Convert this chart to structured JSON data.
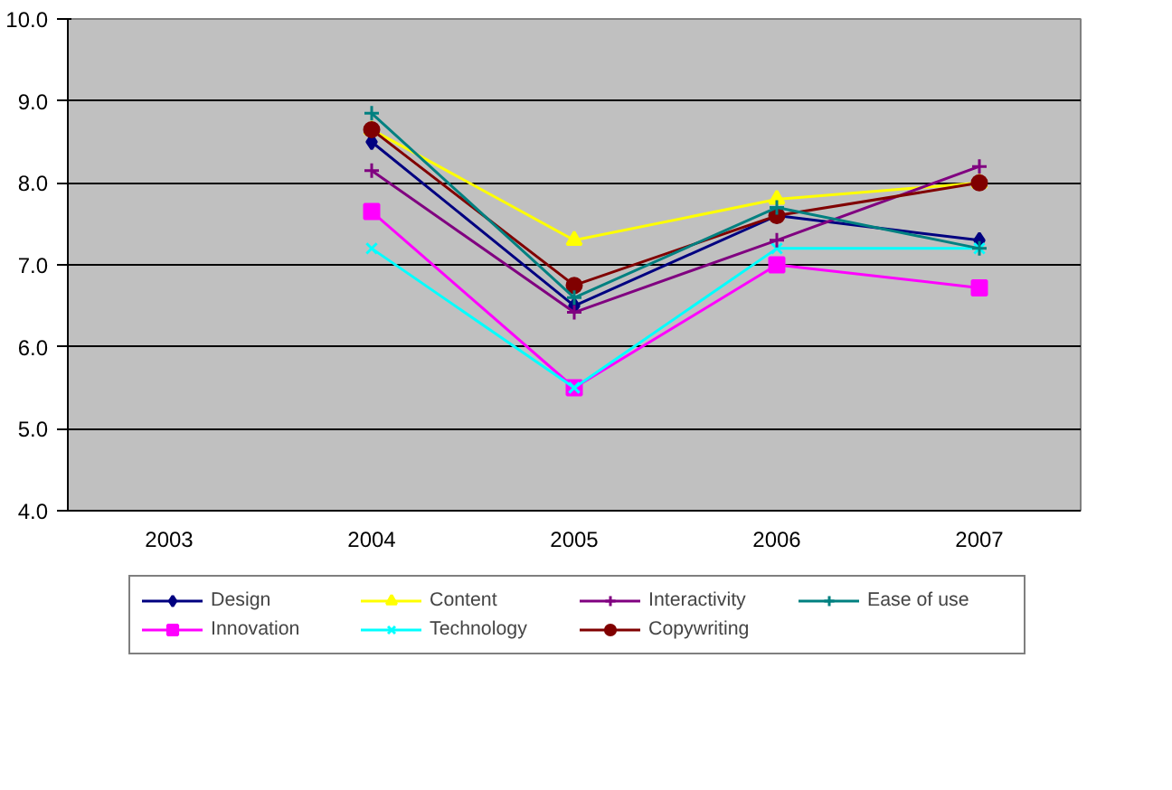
{
  "chart_data": {
    "type": "line",
    "categories": [
      "2003",
      "2004",
      "2005",
      "2006",
      "2007"
    ],
    "ylim": [
      4.0,
      10.0
    ],
    "yticks": [
      {
        "value": 4,
        "label": "4.0"
      },
      {
        "value": 5,
        "label": "5.0"
      },
      {
        "value": 6,
        "label": "6.0"
      },
      {
        "value": 7,
        "label": "7.0"
      },
      {
        "value": 8,
        "label": "8.0"
      },
      {
        "value": 9,
        "label": "9.0"
      },
      {
        "value": 10,
        "label": "10.0"
      }
    ],
    "grid": "y",
    "legend": "bottom",
    "line_style": "solid",
    "series": [
      {
        "name": "Design",
        "color": "#000080",
        "marker": "diamond",
        "values": [
          null,
          8.5,
          6.5,
          7.6,
          7.3
        ]
      },
      {
        "name": "Innovation",
        "color": "#ff00ff",
        "marker": "square",
        "values": [
          null,
          7.65,
          5.5,
          7.0,
          6.72
        ]
      },
      {
        "name": "Content",
        "color": "#ffff00",
        "marker": "triangle",
        "values": [
          null,
          8.65,
          7.3,
          7.8,
          8.0
        ]
      },
      {
        "name": "Technology",
        "color": "#00ffff",
        "marker": "x",
        "values": [
          null,
          7.2,
          5.5,
          7.2,
          7.2
        ]
      },
      {
        "name": "Interactivity",
        "color": "#800080",
        "marker": "cross",
        "values": [
          null,
          8.15,
          6.42,
          7.3,
          8.2
        ]
      },
      {
        "name": "Copywriting",
        "color": "#800000",
        "marker": "circle",
        "values": [
          null,
          8.65,
          6.75,
          7.6,
          8.0
        ]
      },
      {
        "name": "Ease of use",
        "color": "#008080",
        "marker": "cross",
        "values": [
          null,
          8.85,
          6.6,
          7.7,
          7.2
        ]
      }
    ]
  }
}
